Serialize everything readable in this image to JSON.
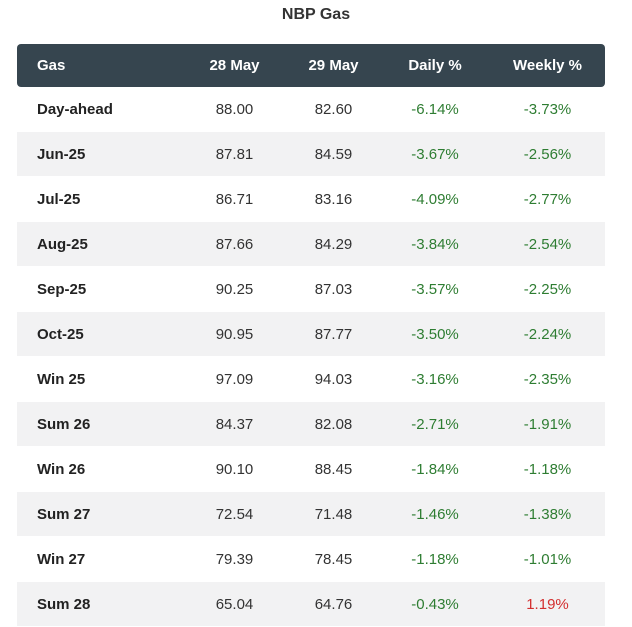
{
  "title": "NBP Gas",
  "headers": {
    "name": "Gas",
    "d1": "28 May",
    "d2": "29 May",
    "daily": "Daily %",
    "weekly": "Weekly %"
  },
  "colors": {
    "header_bg": "#36454f",
    "down": "#2e7d32",
    "up": "#d32f2f",
    "alt_row": "#f2f2f3"
  },
  "rows": [
    {
      "name": "Day-ahead",
      "d1": "88.00",
      "d2": "82.60",
      "daily": "-6.14%",
      "weekly": "-3.73%"
    },
    {
      "name": "Jun-25",
      "d1": "87.81",
      "d2": "84.59",
      "daily": "-3.67%",
      "weekly": "-2.56%"
    },
    {
      "name": "Jul-25",
      "d1": "86.71",
      "d2": "83.16",
      "daily": "-4.09%",
      "weekly": "-2.77%"
    },
    {
      "name": "Aug-25",
      "d1": "87.66",
      "d2": "84.29",
      "daily": "-3.84%",
      "weekly": "-2.54%"
    },
    {
      "name": "Sep-25",
      "d1": "90.25",
      "d2": "87.03",
      "daily": "-3.57%",
      "weekly": "-2.25%"
    },
    {
      "name": "Oct-25",
      "d1": "90.95",
      "d2": "87.77",
      "daily": "-3.50%",
      "weekly": "-2.24%"
    },
    {
      "name": "Win 25",
      "d1": "97.09",
      "d2": "94.03",
      "daily": "-3.16%",
      "weekly": "-2.35%"
    },
    {
      "name": "Sum 26",
      "d1": "84.37",
      "d2": "82.08",
      "daily": "-2.71%",
      "weekly": "-1.91%"
    },
    {
      "name": "Win 26",
      "d1": "90.10",
      "d2": "88.45",
      "daily": "-1.84%",
      "weekly": "-1.18%"
    },
    {
      "name": "Sum 27",
      "d1": "72.54",
      "d2": "71.48",
      "daily": "-1.46%",
      "weekly": "-1.38%"
    },
    {
      "name": "Win 27",
      "d1": "79.39",
      "d2": "78.45",
      "daily": "-1.18%",
      "weekly": "-1.01%"
    },
    {
      "name": "Sum 28",
      "d1": "65.04",
      "d2": "64.76",
      "daily": "-0.43%",
      "weekly": "1.19%"
    }
  ]
}
